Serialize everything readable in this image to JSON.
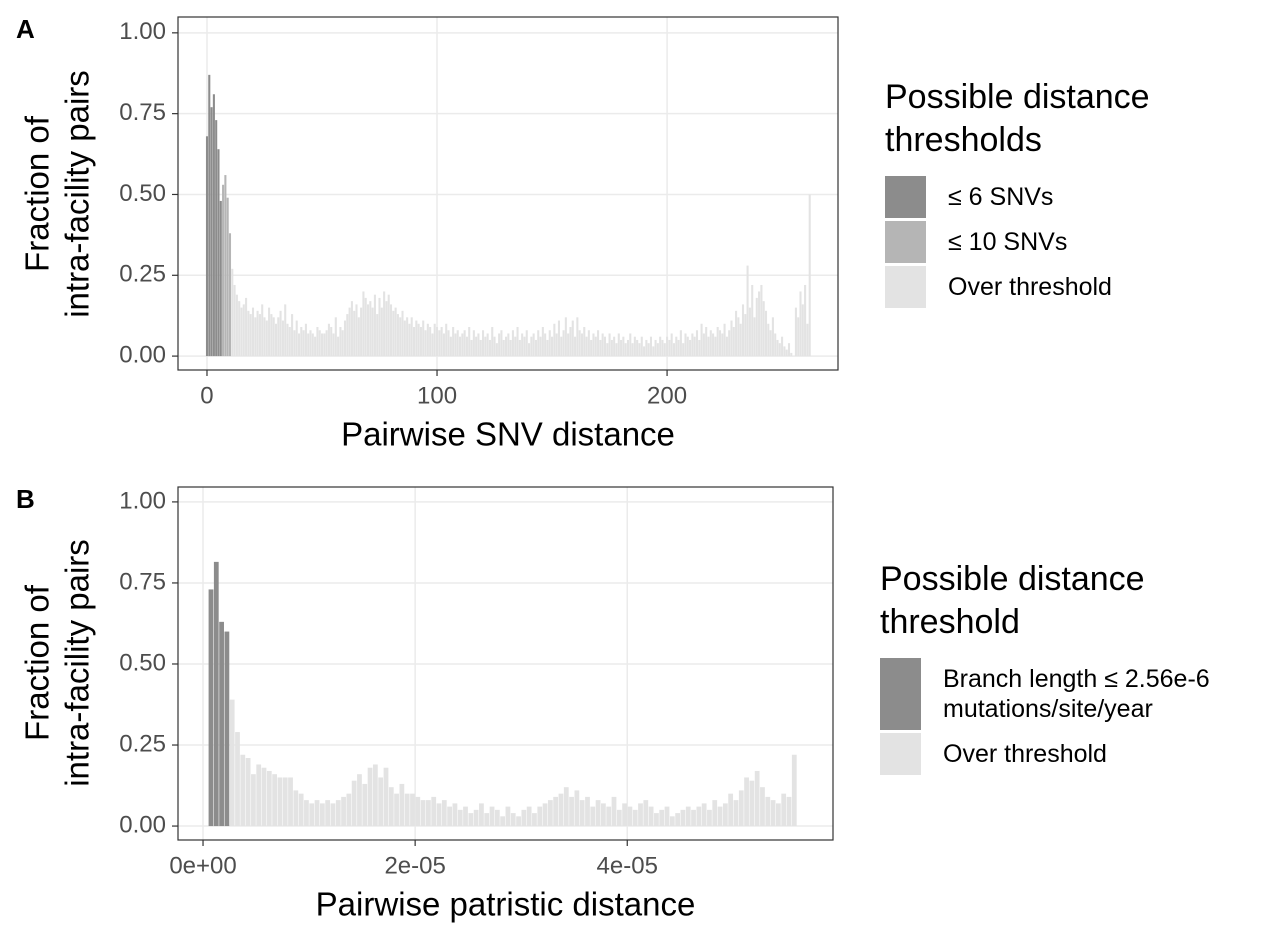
{
  "chart_data": [
    {
      "type": "bar",
      "panel_label": "A",
      "xlabel": "Pairwise SNV distance",
      "ylabel": [
        "Fraction of",
        "intra-facility pairs"
      ],
      "legend_title": "Possible distance thresholds",
      "xlim": [
        -12.6,
        274.3
      ],
      "ylim": [
        -0.043,
        1.049
      ],
      "xticks": [
        0,
        100,
        200
      ],
      "yticks": [
        {
          "value": 0,
          "label": "0.00"
        },
        {
          "value": 0.25,
          "label": "0.25"
        },
        {
          "value": 0.5,
          "label": "0.50"
        },
        {
          "value": 0.75,
          "label": "0.75"
        },
        {
          "value": 1,
          "label": "1.00"
        }
      ],
      "grid": true,
      "series": [
        {
          "name": "≤ 6 SNVs",
          "color": "#8c8c8c",
          "x": [
            0,
            1,
            2,
            3,
            4,
            5,
            6
          ],
          "values": [
            0.68,
            0.87,
            0.77,
            0.81,
            0.73,
            0.64,
            0.48
          ]
        },
        {
          "name": "≤ 10 SNVs",
          "color": "#b5b5b5",
          "x": [
            7,
            8,
            9,
            10
          ],
          "values": [
            0.53,
            0.56,
            0.49,
            0.38
          ]
        },
        {
          "name": "Over threshold",
          "color": "#e3e3e3",
          "x": [
            11,
            12,
            13,
            14,
            15,
            16,
            17,
            18,
            19,
            20,
            21,
            22,
            23,
            24,
            25,
            26,
            27,
            28,
            29,
            30,
            31,
            32,
            33,
            34,
            35,
            36,
            37,
            38,
            39,
            40,
            41,
            42,
            43,
            44,
            45,
            46,
            47,
            48,
            49,
            50,
            51,
            52,
            53,
            54,
            55,
            56,
            57,
            58,
            59,
            60,
            61,
            62,
            63,
            64,
            65,
            66,
            67,
            68,
            69,
            70,
            71,
            72,
            73,
            74,
            75,
            76,
            77,
            78,
            79,
            80,
            81,
            82,
            83,
            84,
            85,
            86,
            87,
            88,
            89,
            90,
            91,
            92,
            93,
            94,
            95,
            96,
            97,
            98,
            99,
            100,
            101,
            102,
            103,
            104,
            105,
            106,
            107,
            108,
            109,
            110,
            111,
            112,
            113,
            114,
            115,
            116,
            117,
            118,
            119,
            120,
            121,
            122,
            123,
            124,
            125,
            126,
            127,
            128,
            129,
            130,
            131,
            132,
            133,
            134,
            135,
            136,
            137,
            138,
            139,
            140,
            141,
            142,
            143,
            144,
            145,
            146,
            147,
            148,
            149,
            150,
            151,
            152,
            153,
            154,
            155,
            156,
            157,
            158,
            159,
            160,
            161,
            162,
            163,
            164,
            165,
            166,
            167,
            168,
            169,
            170,
            171,
            172,
            173,
            174,
            175,
            176,
            177,
            178,
            179,
            180,
            181,
            182,
            183,
            184,
            185,
            186,
            187,
            188,
            189,
            190,
            191,
            192,
            193,
            194,
            195,
            196,
            197,
            198,
            199,
            200,
            201,
            202,
            203,
            204,
            205,
            206,
            207,
            208,
            209,
            210,
            211,
            212,
            213,
            214,
            215,
            216,
            217,
            218,
            219,
            220,
            221,
            222,
            223,
            224,
            225,
            226,
            227,
            228,
            229,
            230,
            231,
            232,
            233,
            234,
            235,
            236,
            237,
            238,
            239,
            240,
            241,
            242,
            243,
            244,
            245,
            246,
            247,
            248,
            249,
            250,
            251,
            252,
            253,
            254,
            255,
            256,
            257,
            258,
            259,
            260,
            261,
            262
          ],
          "values": [
            0.27,
            0.22,
            0.19,
            0.17,
            0.15,
            0.16,
            0.18,
            0.14,
            0.13,
            0.15,
            0.12,
            0.14,
            0.13,
            0.16,
            0.12,
            0.11,
            0.15,
            0.13,
            0.12,
            0.1,
            0.12,
            0.14,
            0.11,
            0.16,
            0.1,
            0.09,
            0.13,
            0.08,
            0.11,
            0.07,
            0.09,
            0.08,
            0.1,
            0.07,
            0.08,
            0.07,
            0.06,
            0.09,
            0.08,
            0.07,
            0.07,
            0.08,
            0.1,
            0.09,
            0.07,
            0.12,
            0.06,
            0.09,
            0.08,
            0.11,
            0.13,
            0.15,
            0.17,
            0.14,
            0.16,
            0.12,
            0.15,
            0.2,
            0.18,
            0.16,
            0.17,
            0.15,
            0.19,
            0.13,
            0.18,
            0.15,
            0.2,
            0.17,
            0.19,
            0.16,
            0.14,
            0.15,
            0.13,
            0.12,
            0.14,
            0.11,
            0.12,
            0.1,
            0.12,
            0.09,
            0.11,
            0.1,
            0.09,
            0.11,
            0.08,
            0.1,
            0.09,
            0.07,
            0.1,
            0.09,
            0.08,
            0.09,
            0.07,
            0.1,
            0.08,
            0.06,
            0.09,
            0.07,
            0.08,
            0.06,
            0.07,
            0.08,
            0.06,
            0.09,
            0.05,
            0.08,
            0.06,
            0.07,
            0.05,
            0.08,
            0.06,
            0.07,
            0.05,
            0.09,
            0.06,
            0.04,
            0.07,
            0.08,
            0.05,
            0.06,
            0.07,
            0.05,
            0.08,
            0.06,
            0.09,
            0.05,
            0.07,
            0.06,
            0.08,
            0.04,
            0.06,
            0.07,
            0.05,
            0.08,
            0.06,
            0.09,
            0.07,
            0.05,
            0.08,
            0.06,
            0.1,
            0.07,
            0.11,
            0.06,
            0.08,
            0.12,
            0.07,
            0.09,
            0.11,
            0.06,
            0.12,
            0.08,
            0.07,
            0.09,
            0.06,
            0.08,
            0.05,
            0.07,
            0.06,
            0.08,
            0.05,
            0.07,
            0.06,
            0.04,
            0.07,
            0.05,
            0.06,
            0.04,
            0.07,
            0.05,
            0.06,
            0.04,
            0.05,
            0.07,
            0.04,
            0.06,
            0.05,
            0.04,
            0.06,
            0.03,
            0.05,
            0.04,
            0.06,
            0.03,
            0.05,
            0.04,
            0.06,
            0.05,
            0.04,
            0.06,
            0.05,
            0.07,
            0.04,
            0.06,
            0.05,
            0.08,
            0.04,
            0.07,
            0.06,
            0.05,
            0.07,
            0.06,
            0.08,
            0.05,
            0.1,
            0.07,
            0.09,
            0.06,
            0.08,
            0.07,
            0.06,
            0.09,
            0.08,
            0.07,
            0.1,
            0.06,
            0.08,
            0.11,
            0.09,
            0.14,
            0.12,
            0.1,
            0.16,
            0.13,
            0.28,
            0.15,
            0.22,
            0.12,
            0.18,
            0.2,
            0.22,
            0.17,
            0.14,
            0.1,
            0.08,
            0.12,
            0.07,
            0.05,
            0.04,
            0.06,
            0.03,
            0.02,
            0.04,
            0.01,
            0,
            0.15,
            0.12,
            0.2,
            0.16,
            0.22,
            0.1,
            0.5
          ]
        }
      ]
    },
    {
      "type": "bar",
      "panel_label": "B",
      "xlabel": "Pairwise patristic distance",
      "ylabel": [
        "Fraction of",
        "intra-facility pairs"
      ],
      "legend_title": "Possible distance threshold",
      "xlim": [
        -2.36e-06,
        5.94e-05
      ],
      "ylim": [
        -0.043,
        1.046
      ],
      "xticks": [
        {
          "value": 0,
          "label": "0e+00"
        },
        {
          "value": 2e-05,
          "label": "2e-05"
        },
        {
          "value": 4e-05,
          "label": "4e-05"
        }
      ],
      "yticks": [
        {
          "value": 0,
          "label": "0.00"
        },
        {
          "value": 0.25,
          "label": "0.25"
        },
        {
          "value": 0.5,
          "label": "0.50"
        },
        {
          "value": 0.75,
          "label": "0.75"
        },
        {
          "value": 1,
          "label": "1.00"
        }
      ],
      "grid": true,
      "series": [
        {
          "name": "Branch length ≤ 2.56e-6 mutations/site/year",
          "color": "#8c8c8c",
          "x": [
            7.5e-07,
            1.25e-06,
            1.75e-06,
            2.25e-06
          ],
          "values": [
            0.73,
            0.815,
            0.63,
            0.6
          ]
        },
        {
          "name": "Over threshold",
          "color": "#e3e3e3",
          "x": [
            2.75e-06,
            3.25e-06,
            3.75e-06,
            4.25e-06,
            4.75e-06,
            5.25e-06,
            5.75e-06,
            6.25e-06,
            6.75e-06,
            7.25e-06,
            7.75e-06,
            8.25e-06,
            8.75e-06,
            9.25e-06,
            9.75e-06,
            1.025e-05,
            1.075e-05,
            1.125e-05,
            1.175e-05,
            1.225e-05,
            1.275e-05,
            1.325e-05,
            1.375e-05,
            1.425e-05,
            1.475e-05,
            1.525e-05,
            1.575e-05,
            1.625e-05,
            1.675e-05,
            1.725e-05,
            1.775e-05,
            1.825e-05,
            1.875e-05,
            1.925e-05,
            1.975e-05,
            2.025e-05,
            2.075e-05,
            2.125e-05,
            2.175e-05,
            2.225e-05,
            2.275e-05,
            2.325e-05,
            2.375e-05,
            2.425e-05,
            2.475e-05,
            2.525e-05,
            2.575e-05,
            2.625e-05,
            2.675e-05,
            2.725e-05,
            2.775e-05,
            2.825e-05,
            2.875e-05,
            2.925e-05,
            2.975e-05,
            3.025e-05,
            3.075e-05,
            3.125e-05,
            3.175e-05,
            3.225e-05,
            3.275e-05,
            3.325e-05,
            3.375e-05,
            3.425e-05,
            3.475e-05,
            3.525e-05,
            3.575e-05,
            3.625e-05,
            3.675e-05,
            3.725e-05,
            3.775e-05,
            3.825e-05,
            3.875e-05,
            3.925e-05,
            3.975e-05,
            4.025e-05,
            4.075e-05,
            4.125e-05,
            4.175e-05,
            4.225e-05,
            4.275e-05,
            4.325e-05,
            4.375e-05,
            4.425e-05,
            4.475e-05,
            4.525e-05,
            4.575e-05,
            4.625e-05,
            4.675e-05,
            4.725e-05,
            4.775e-05,
            4.825e-05,
            4.875e-05,
            4.925e-05,
            4.975e-05,
            5.025e-05,
            5.075e-05,
            5.125e-05,
            5.175e-05,
            5.225e-05,
            5.275e-05,
            5.325e-05,
            5.375e-05,
            5.425e-05,
            5.475e-05,
            5.525e-05,
            5.575e-05
          ],
          "values": [
            0.39,
            0.29,
            0.22,
            0.21,
            0.16,
            0.19,
            0.18,
            0.17,
            0.16,
            0.15,
            0.15,
            0.15,
            0.11,
            0.1,
            0.08,
            0.07,
            0.08,
            0.07,
            0.08,
            0.07,
            0.08,
            0.09,
            0.1,
            0.14,
            0.16,
            0.13,
            0.18,
            0.19,
            0.15,
            0.18,
            0.12,
            0.1,
            0.13,
            0.1,
            0.1,
            0.09,
            0.08,
            0.08,
            0.09,
            0.07,
            0.08,
            0.06,
            0.07,
            0.05,
            0.06,
            0.04,
            0.05,
            0.07,
            0.04,
            0.06,
            0.05,
            0.03,
            0.06,
            0.04,
            0.03,
            0.05,
            0.06,
            0.04,
            0.06,
            0.07,
            0.08,
            0.09,
            0.1,
            0.12,
            0.09,
            0.11,
            0.08,
            0.09,
            0.06,
            0.08,
            0.07,
            0.06,
            0.09,
            0.05,
            0.07,
            0.06,
            0.05,
            0.07,
            0.08,
            0.06,
            0.04,
            0.05,
            0.06,
            0.03,
            0.04,
            0.05,
            0.06,
            0.05,
            0.06,
            0.07,
            0.05,
            0.08,
            0.06,
            0.07,
            0.1,
            0.08,
            0.11,
            0.15,
            0.14,
            0.17,
            0.12,
            0.09,
            0.08,
            0.07,
            0.1,
            0.09,
            0.22
          ]
        }
      ]
    }
  ]
}
